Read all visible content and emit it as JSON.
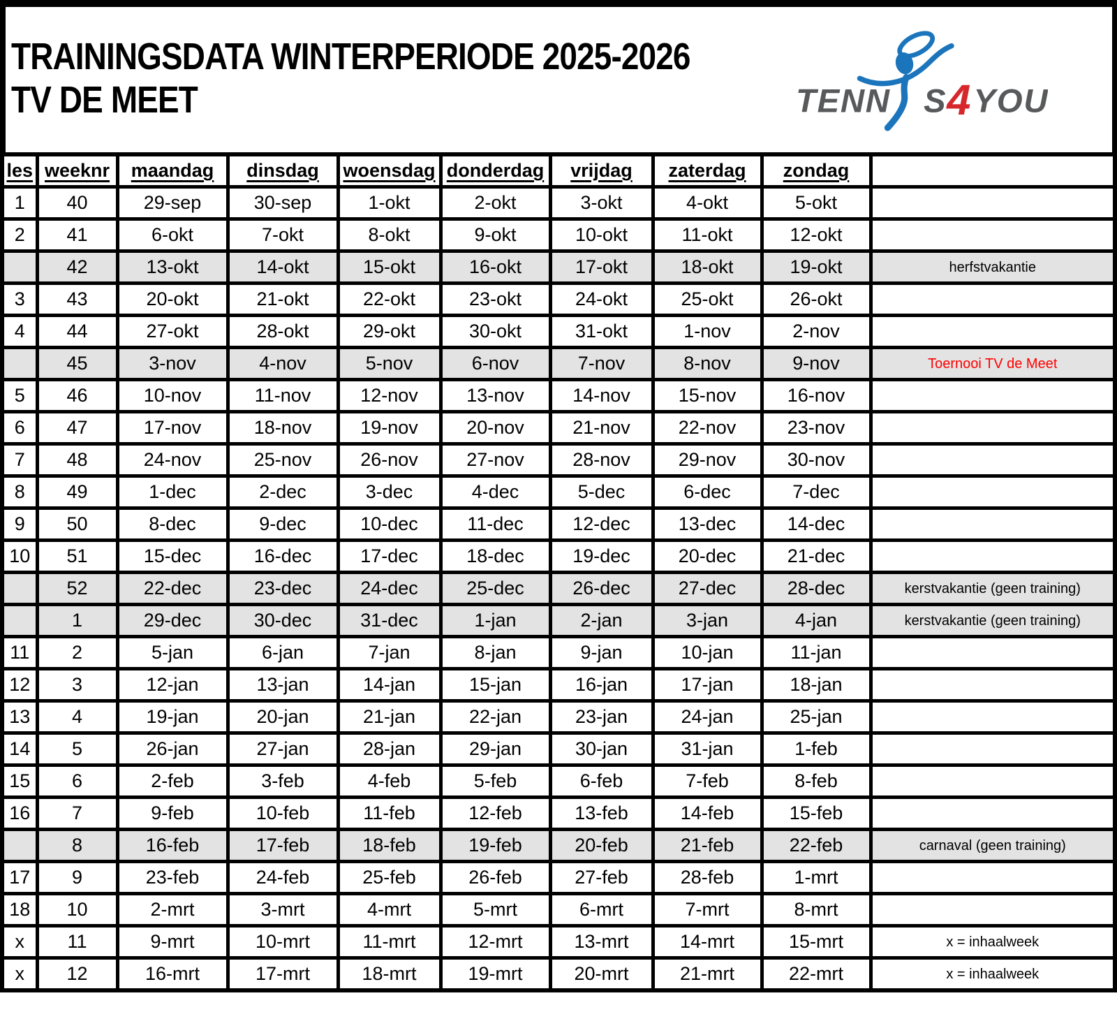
{
  "document": {
    "title_line1": "TRAININGSDATA WINTERPERIODE 2025-2026",
    "title_line2": "TV DE MEET"
  },
  "logo": {
    "tenn": "TENN",
    "s": "S",
    "four": "4",
    "you": "YOU"
  },
  "colors": {
    "ink": "#000000",
    "shade": "#e3e3e3",
    "note_red": "#fe0000",
    "logo_gray": "#58595b",
    "logo_blue": "#1b75bc",
    "logo_red": "#d6272c"
  },
  "table": {
    "headers": [
      "les",
      "weeknr",
      "maandag",
      "dinsdag",
      "woensdag",
      "donderdag",
      "vrijdag",
      "zaterdag",
      "zondag",
      ""
    ],
    "rows": [
      {
        "les": "1",
        "weeknr": "40",
        "days": [
          "29-sep",
          "30-sep",
          "1-okt",
          "2-okt",
          "3-okt",
          "4-okt",
          "5-okt"
        ],
        "note": "",
        "shaded": false,
        "note_red": false
      },
      {
        "les": "2",
        "weeknr": "41",
        "days": [
          "6-okt",
          "7-okt",
          "8-okt",
          "9-okt",
          "10-okt",
          "11-okt",
          "12-okt"
        ],
        "note": "",
        "shaded": false,
        "note_red": false
      },
      {
        "les": "",
        "weeknr": "42",
        "days": [
          "13-okt",
          "14-okt",
          "15-okt",
          "16-okt",
          "17-okt",
          "18-okt",
          "19-okt"
        ],
        "note": "herfstvakantie",
        "shaded": true,
        "note_red": false
      },
      {
        "les": "3",
        "weeknr": "43",
        "days": [
          "20-okt",
          "21-okt",
          "22-okt",
          "23-okt",
          "24-okt",
          "25-okt",
          "26-okt"
        ],
        "note": "",
        "shaded": false,
        "note_red": false
      },
      {
        "les": "4",
        "weeknr": "44",
        "days": [
          "27-okt",
          "28-okt",
          "29-okt",
          "30-okt",
          "31-okt",
          "1-nov",
          "2-nov"
        ],
        "note": "",
        "shaded": false,
        "note_red": false
      },
      {
        "les": "",
        "weeknr": "45",
        "days": [
          "3-nov",
          "4-nov",
          "5-nov",
          "6-nov",
          "7-nov",
          "8-nov",
          "9-nov"
        ],
        "note": "Toernooi TV de Meet",
        "shaded": true,
        "note_red": true
      },
      {
        "les": "5",
        "weeknr": "46",
        "days": [
          "10-nov",
          "11-nov",
          "12-nov",
          "13-nov",
          "14-nov",
          "15-nov",
          "16-nov"
        ],
        "note": "",
        "shaded": false,
        "note_red": false
      },
      {
        "les": "6",
        "weeknr": "47",
        "days": [
          "17-nov",
          "18-nov",
          "19-nov",
          "20-nov",
          "21-nov",
          "22-nov",
          "23-nov"
        ],
        "note": "",
        "shaded": false,
        "note_red": false
      },
      {
        "les": "7",
        "weeknr": "48",
        "days": [
          "24-nov",
          "25-nov",
          "26-nov",
          "27-nov",
          "28-nov",
          "29-nov",
          "30-nov"
        ],
        "note": "",
        "shaded": false,
        "note_red": false
      },
      {
        "les": "8",
        "weeknr": "49",
        "days": [
          "1-dec",
          "2-dec",
          "3-dec",
          "4-dec",
          "5-dec",
          "6-dec",
          "7-dec"
        ],
        "note": "",
        "shaded": false,
        "note_red": false
      },
      {
        "les": "9",
        "weeknr": "50",
        "days": [
          "8-dec",
          "9-dec",
          "10-dec",
          "11-dec",
          "12-dec",
          "13-dec",
          "14-dec"
        ],
        "note": "",
        "shaded": false,
        "note_red": false
      },
      {
        "les": "10",
        "weeknr": "51",
        "days": [
          "15-dec",
          "16-dec",
          "17-dec",
          "18-dec",
          "19-dec",
          "20-dec",
          "21-dec"
        ],
        "note": "",
        "shaded": false,
        "note_red": false
      },
      {
        "les": "",
        "weeknr": "52",
        "days": [
          "22-dec",
          "23-dec",
          "24-dec",
          "25-dec",
          "26-dec",
          "27-dec",
          "28-dec"
        ],
        "note": "kerstvakantie (geen training)",
        "shaded": true,
        "note_red": false
      },
      {
        "les": "",
        "weeknr": "1",
        "days": [
          "29-dec",
          "30-dec",
          "31-dec",
          "1-jan",
          "2-jan",
          "3-jan",
          "4-jan"
        ],
        "note": "kerstvakantie (geen training)",
        "shaded": true,
        "note_red": false
      },
      {
        "les": "11",
        "weeknr": "2",
        "days": [
          "5-jan",
          "6-jan",
          "7-jan",
          "8-jan",
          "9-jan",
          "10-jan",
          "11-jan"
        ],
        "note": "",
        "shaded": false,
        "note_red": false
      },
      {
        "les": "12",
        "weeknr": "3",
        "days": [
          "12-jan",
          "13-jan",
          "14-jan",
          "15-jan",
          "16-jan",
          "17-jan",
          "18-jan"
        ],
        "note": "",
        "shaded": false,
        "note_red": false
      },
      {
        "les": "13",
        "weeknr": "4",
        "days": [
          "19-jan",
          "20-jan",
          "21-jan",
          "22-jan",
          "23-jan",
          "24-jan",
          "25-jan"
        ],
        "note": "",
        "shaded": false,
        "note_red": false
      },
      {
        "les": "14",
        "weeknr": "5",
        "days": [
          "26-jan",
          "27-jan",
          "28-jan",
          "29-jan",
          "30-jan",
          "31-jan",
          "1-feb"
        ],
        "note": "",
        "shaded": false,
        "note_red": false
      },
      {
        "les": "15",
        "weeknr": "6",
        "days": [
          "2-feb",
          "3-feb",
          "4-feb",
          "5-feb",
          "6-feb",
          "7-feb",
          "8-feb"
        ],
        "note": "",
        "shaded": false,
        "note_red": false
      },
      {
        "les": "16",
        "weeknr": "7",
        "days": [
          "9-feb",
          "10-feb",
          "11-feb",
          "12-feb",
          "13-feb",
          "14-feb",
          "15-feb"
        ],
        "note": "",
        "shaded": false,
        "note_red": false
      },
      {
        "les": "",
        "weeknr": "8",
        "days": [
          "16-feb",
          "17-feb",
          "18-feb",
          "19-feb",
          "20-feb",
          "21-feb",
          "22-feb"
        ],
        "note": "carnaval (geen training)",
        "shaded": true,
        "note_red": false
      },
      {
        "les": "17",
        "weeknr": "9",
        "days": [
          "23-feb",
          "24-feb",
          "25-feb",
          "26-feb",
          "27-feb",
          "28-feb",
          "1-mrt"
        ],
        "note": "",
        "shaded": false,
        "note_red": false
      },
      {
        "les": "18",
        "weeknr": "10",
        "days": [
          "2-mrt",
          "3-mrt",
          "4-mrt",
          "5-mrt",
          "6-mrt",
          "7-mrt",
          "8-mrt"
        ],
        "note": "",
        "shaded": false,
        "note_red": false
      },
      {
        "les": "x",
        "weeknr": "11",
        "days": [
          "9-mrt",
          "10-mrt",
          "11-mrt",
          "12-mrt",
          "13-mrt",
          "14-mrt",
          "15-mrt"
        ],
        "note": "x = inhaalweek",
        "shaded": false,
        "note_red": false
      },
      {
        "les": "x",
        "weeknr": "12",
        "days": [
          "16-mrt",
          "17-mrt",
          "18-mrt",
          "19-mrt",
          "20-mrt",
          "21-mrt",
          "22-mrt"
        ],
        "note": "x = inhaalweek",
        "shaded": false,
        "note_red": false
      }
    ]
  }
}
